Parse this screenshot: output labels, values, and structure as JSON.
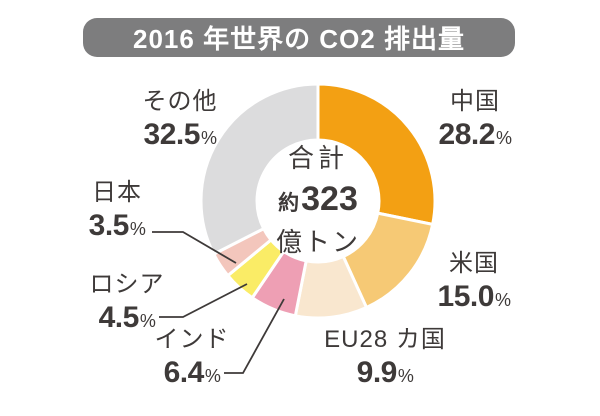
{
  "title": "2016 年世界の CO2 排出量",
  "percent_sign": "%",
  "center": {
    "line1": "合計",
    "approx": "約",
    "value": "323",
    "unit": "億トン"
  },
  "labels": [
    {
      "name": "中国",
      "pct": "28.2"
    },
    {
      "name": "米国",
      "pct": "15.0"
    },
    {
      "name": "EU28 カ国",
      "pct": "9.9"
    },
    {
      "name": "インド",
      "pct": "6.4"
    },
    {
      "name": "ロシア",
      "pct": "4.5"
    },
    {
      "name": "日本",
      "pct": "3.5"
    },
    {
      "name": "その他",
      "pct": "32.5"
    }
  ],
  "colors": {
    "banner_bg": "#7D7D7E",
    "banner_text": "#FFFFFF",
    "label_text": "#3E3A39",
    "leader_line": "#3E3A39",
    "segment_gap": "#FFFFFF"
  },
  "chart_data": {
    "type": "pie",
    "subtype": "donut",
    "title": "2016 年世界の CO2 排出量",
    "categories": [
      "中国",
      "米国",
      "EU28 カ国",
      "インド",
      "ロシア",
      "日本",
      "その他"
    ],
    "values": [
      28.2,
      15.0,
      9.9,
      6.4,
      4.5,
      3.5,
      32.5
    ],
    "colors": [
      "#F3A013",
      "#F6C975",
      "#F9E7CF",
      "#EE9FB4",
      "#FAEC66",
      "#F3C6BC",
      "#DCDCDD"
    ],
    "unit": "%",
    "start_angle": "12 o'clock, clockwise",
    "center_text": "合計 約323 億トン",
    "legend": "none (direct labels with leader lines for インド, ロシア, 日本)"
  }
}
